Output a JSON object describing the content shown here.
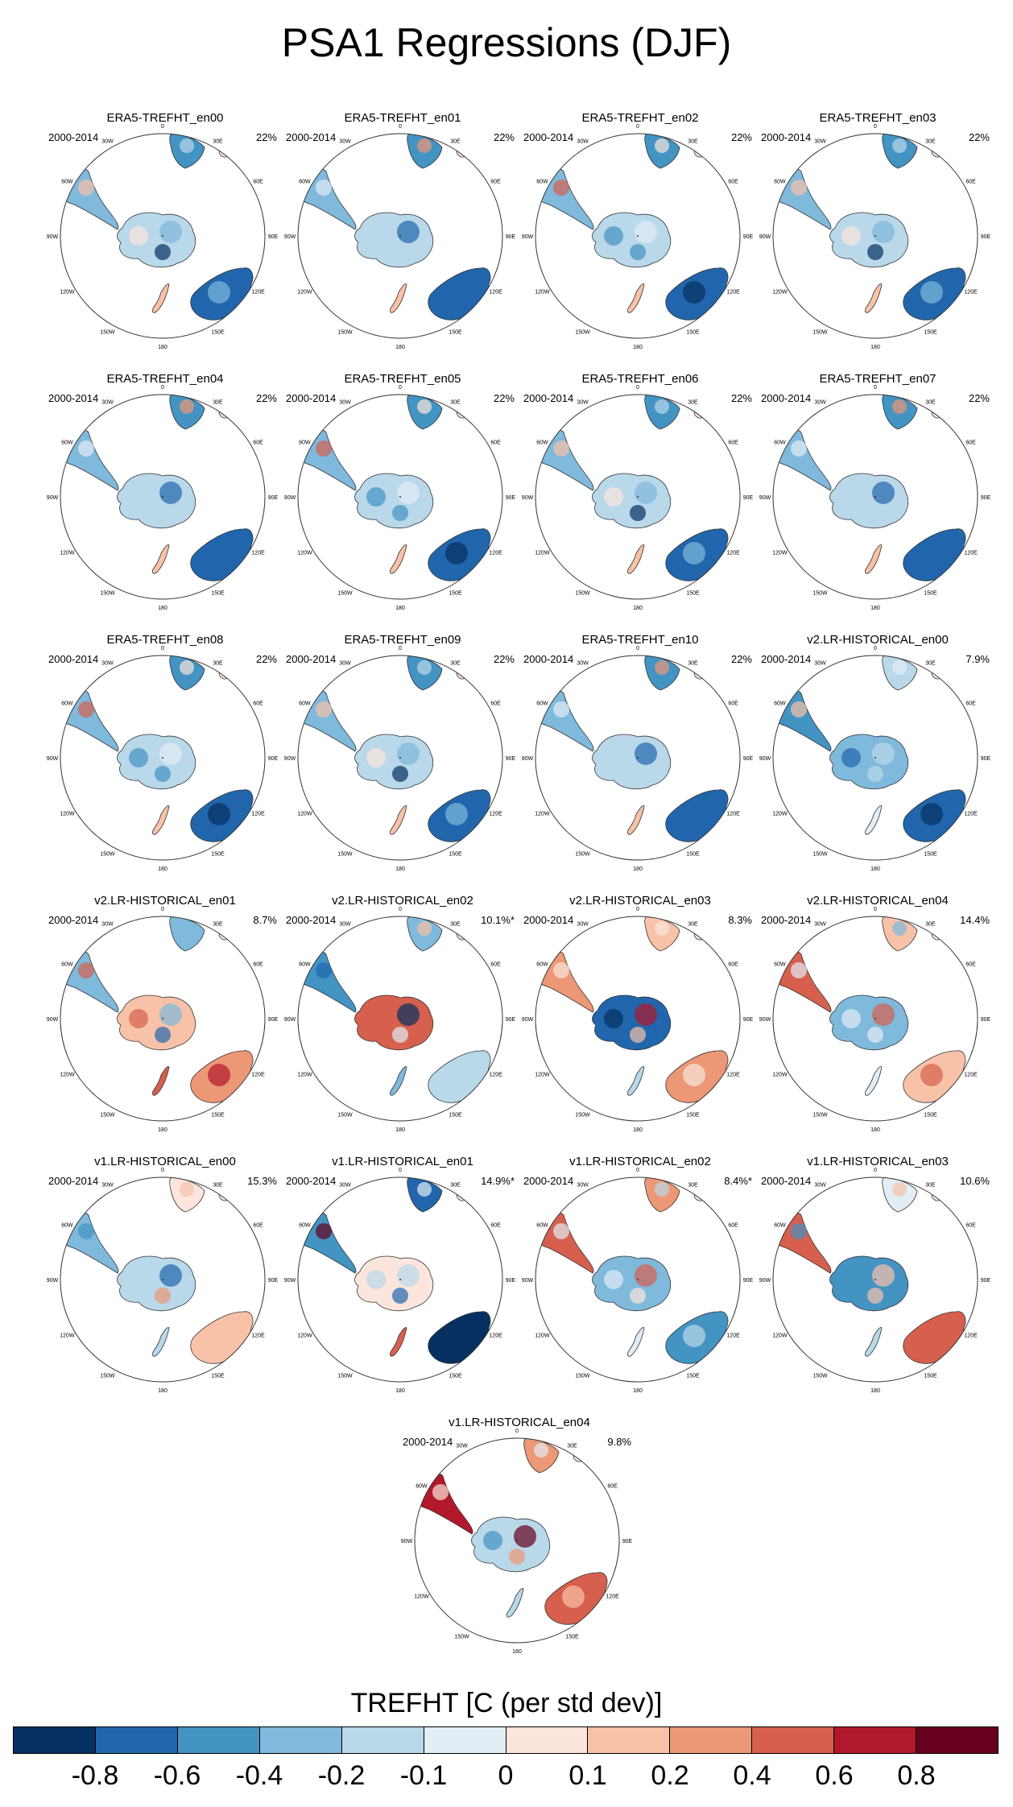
{
  "title": "PSA1 Regressions (DJF)",
  "period": "2000-2014",
  "longitude_labels": [
    "0",
    "30E",
    "60E",
    "90E",
    "120E",
    "150E",
    "180",
    "150W",
    "120W",
    "90W",
    "60W",
    "30W"
  ],
  "panels": [
    {
      "name": "ERA5-TREFHT_en00",
      "pct": "22%"
    },
    {
      "name": "ERA5-TREFHT_en01",
      "pct": "22%"
    },
    {
      "name": "ERA5-TREFHT_en02",
      "pct": "22%"
    },
    {
      "name": "ERA5-TREFHT_en03",
      "pct": "22%"
    },
    {
      "name": "ERA5-TREFHT_en04",
      "pct": "22%"
    },
    {
      "name": "ERA5-TREFHT_en05",
      "pct": "22%"
    },
    {
      "name": "ERA5-TREFHT_en06",
      "pct": "22%"
    },
    {
      "name": "ERA5-TREFHT_en07",
      "pct": "22%"
    },
    {
      "name": "ERA5-TREFHT_en08",
      "pct": "22%"
    },
    {
      "name": "ERA5-TREFHT_en09",
      "pct": "22%"
    },
    {
      "name": "ERA5-TREFHT_en10",
      "pct": "22%"
    },
    {
      "name": "v2.LR-HISTORICAL_en00",
      "pct": "7.9%"
    },
    {
      "name": "v2.LR-HISTORICAL_en01",
      "pct": "8.7%"
    },
    {
      "name": "v2.LR-HISTORICAL_en02",
      "pct": "10.1%*"
    },
    {
      "name": "v2.LR-HISTORICAL_en03",
      "pct": "8.3%"
    },
    {
      "name": "v2.LR-HISTORICAL_en04",
      "pct": "14.4%"
    },
    {
      "name": "v1.LR-HISTORICAL_en00",
      "pct": "15.3%"
    },
    {
      "name": "v1.LR-HISTORICAL_en01",
      "pct": "14.9%*"
    },
    {
      "name": "v1.LR-HISTORICAL_en02",
      "pct": "8.4%*"
    },
    {
      "name": "v1.LR-HISTORICAL_en03",
      "pct": "10.6%"
    },
    {
      "name": "v1.LR-HISTORICAL_en04",
      "pct": "9.8%"
    }
  ],
  "colorbar": {
    "title": "TREFHT [C (per std dev)]",
    "colors": [
      "#053061",
      "#2166ac",
      "#4393c3",
      "#7fb9dc",
      "#b9d8ea",
      "#e2edf5",
      "#fbe5dc",
      "#f8c2a8",
      "#ec9775",
      "#d6604d",
      "#b2182b",
      "#67001f"
    ],
    "ticks": [
      "-0.8",
      "-0.6",
      "-0.4",
      "-0.2",
      "-0.1",
      "0",
      "0.1",
      "0.2",
      "0.4",
      "0.6",
      "0.8"
    ]
  }
}
